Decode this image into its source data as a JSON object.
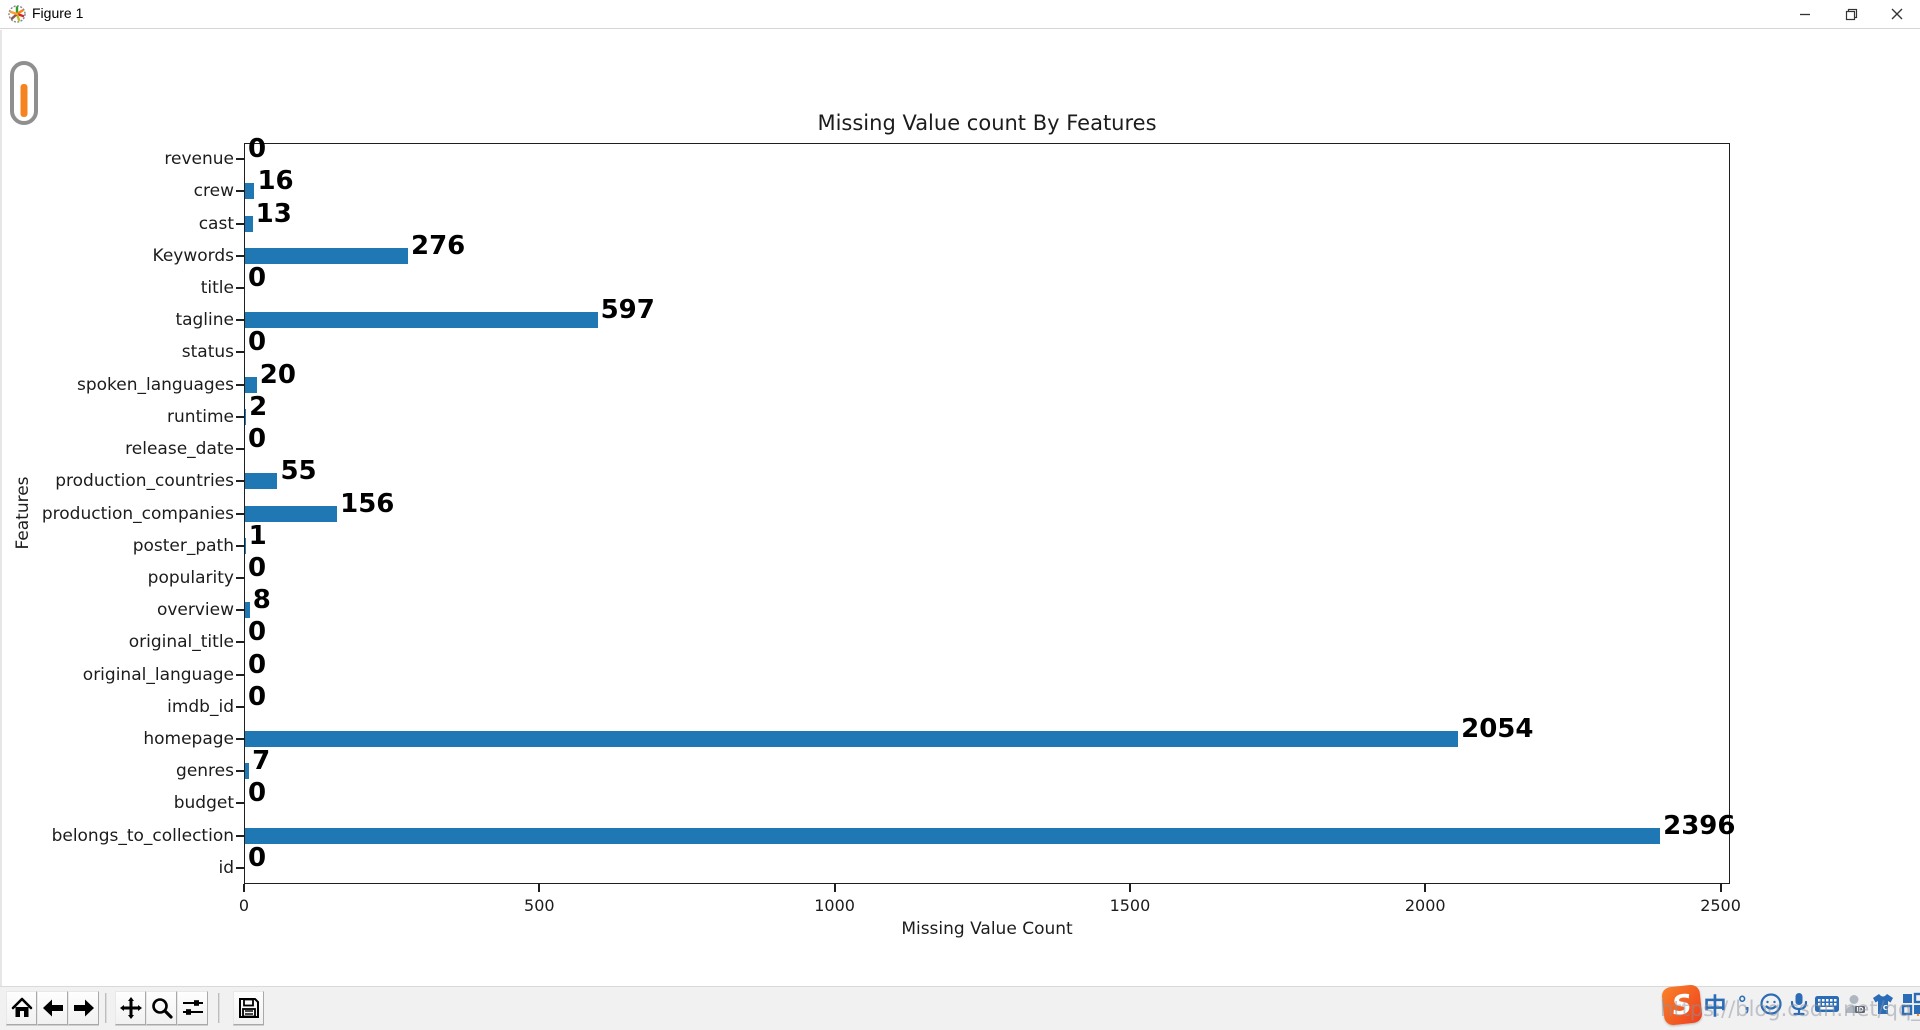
{
  "window": {
    "title": "Figure 1",
    "controls": {
      "minimize": "minimize",
      "restore": "restore",
      "close": "close"
    }
  },
  "chart_data": {
    "type": "bar",
    "orientation": "horizontal",
    "title": "Missing Value count By Features",
    "xlabel": "Missing Value Count",
    "ylabel": "Features",
    "categories": [
      "revenue",
      "crew",
      "cast",
      "Keywords",
      "title",
      "tagline",
      "status",
      "spoken_languages",
      "runtime",
      "release_date",
      "production_countries",
      "production_companies",
      "poster_path",
      "popularity",
      "overview",
      "original_title",
      "original_language",
      "imdb_id",
      "homepage",
      "genres",
      "budget",
      "belongs_to_collection",
      "id"
    ],
    "values": [
      0,
      16,
      13,
      276,
      0,
      597,
      0,
      20,
      2,
      0,
      55,
      156,
      1,
      0,
      8,
      0,
      0,
      0,
      2054,
      7,
      0,
      2396,
      0
    ],
    "xticks": [
      0,
      500,
      1000,
      1500,
      2000,
      2500
    ],
    "xlim": [
      0,
      2516
    ],
    "bar_color": "#1f77b4",
    "grid": false,
    "legend": null,
    "value_labels": "bold at end of each bar"
  },
  "toolbar": {
    "buttons": [
      {
        "name": "home",
        "label": "Home"
      },
      {
        "name": "back",
        "label": "Back"
      },
      {
        "name": "forward",
        "label": "Forward"
      },
      {
        "name": "pan",
        "label": "Pan"
      },
      {
        "name": "zoom",
        "label": "Zoom"
      },
      {
        "name": "subplots",
        "label": "Configure subplots"
      },
      {
        "name": "save",
        "label": "Save"
      }
    ]
  },
  "tray": {
    "ime": "Sogou input toolbar",
    "icons": [
      "sogou-logo",
      "chinese-mode",
      "punctuation",
      "emoji",
      "microphone",
      "keyboard",
      "account",
      "skin",
      "toolbox"
    ],
    "chinese_mode_glyph": "中",
    "punctuation_glyph": "°,",
    "watermark": "https://blog.csdn.net/qq_41576797"
  }
}
